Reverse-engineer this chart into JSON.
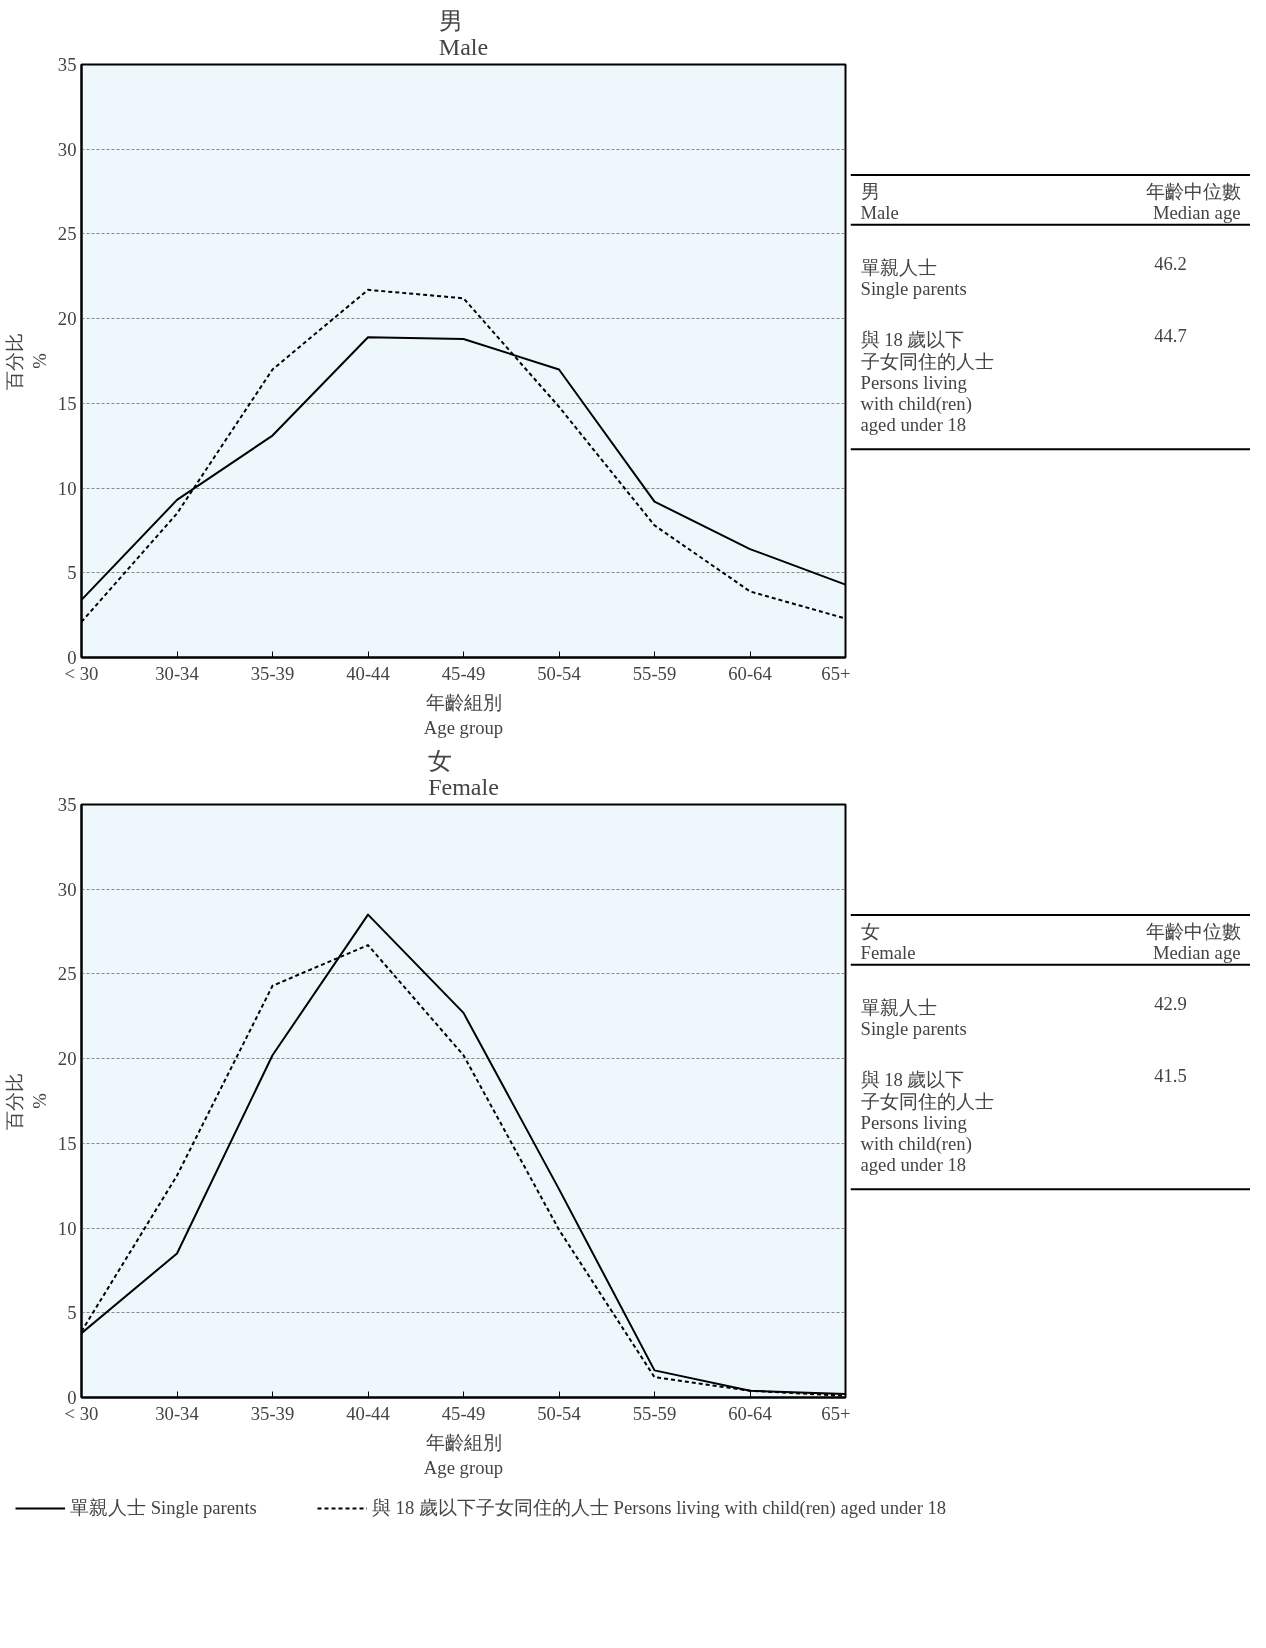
{
  "chart_data": [
    {
      "type": "line",
      "title": "男\nMale",
      "ylabel": "百分比\n%",
      "xlabel": "年齡組別\nAge group",
      "categories": [
        "< 30",
        "30-34",
        "35-39",
        "40-44",
        "45-49",
        "50-54",
        "55-59",
        "60-64",
        "65+"
      ],
      "series": [
        {
          "color": "#000000",
          "line_style": "solid",
          "values": [
            3.4,
            9.3,
            13.1,
            18.9,
            18.8,
            17.0,
            9.2,
            6.4,
            4.3
          ]
        },
        {
          "color": "#000000",
          "line_style": "dashed",
          "values": [
            2.1,
            8.5,
            17.0,
            21.7,
            21.2,
            14.8,
            7.8,
            3.9,
            2.3
          ]
        }
      ],
      "ylim": [
        0,
        35
      ],
      "yticks": [
        0,
        5,
        10,
        15,
        20,
        25,
        30,
        35
      ],
      "grid": "y",
      "marker": "none"
    },
    {
      "type": "other",
      "annotations": [
        "男",
        "Male",
        "年齡中位數",
        "Median age",
        "單親人士",
        "Single parents",
        "46.2",
        "與 18 歲以下",
        "子女同住的人士",
        "Persons living",
        "with child(ren)",
        "aged under 18",
        "44.7"
      ]
    },
    {
      "type": "line",
      "title": "女\nFemale",
      "ylabel": "百分比\n%",
      "xlabel": "年齡組別\nAge group",
      "categories": [
        "< 30",
        "30-34",
        "35-39",
        "40-44",
        "45-49",
        "50-54",
        "55-59",
        "60-64",
        "65+"
      ],
      "series": [
        {
          "name": "單親人士 Single parents",
          "color": "#000000",
          "line_style": "solid",
          "values": [
            3.8,
            8.5,
            20.2,
            28.5,
            22.7,
            12.3,
            1.6,
            0.4,
            0.2
          ]
        },
        {
          "name": "與 18 歲以下子女同住的人士 Persons living with child(ren) aged under 18",
          "color": "#000000",
          "line_style": "dashed",
          "values": [
            3.9,
            13.1,
            24.3,
            26.7,
            20.2,
            9.9,
            1.2,
            0.4,
            0.1
          ]
        }
      ],
      "ylim": [
        0,
        35
      ],
      "yticks": [
        0,
        5,
        10,
        15,
        20,
        25,
        30,
        35
      ],
      "grid": "y",
      "marker": "none",
      "legend": "bottom"
    },
    {
      "type": "other",
      "annotations": [
        "女",
        "Female",
        "年齡中位數",
        "Median age",
        "單親人士",
        "Single parents",
        "42.9",
        "與 18 歲以下",
        "子女同住的人士",
        "Persons living",
        "with child(ren)",
        "aged under 18",
        "41.5"
      ]
    }
  ]
}
